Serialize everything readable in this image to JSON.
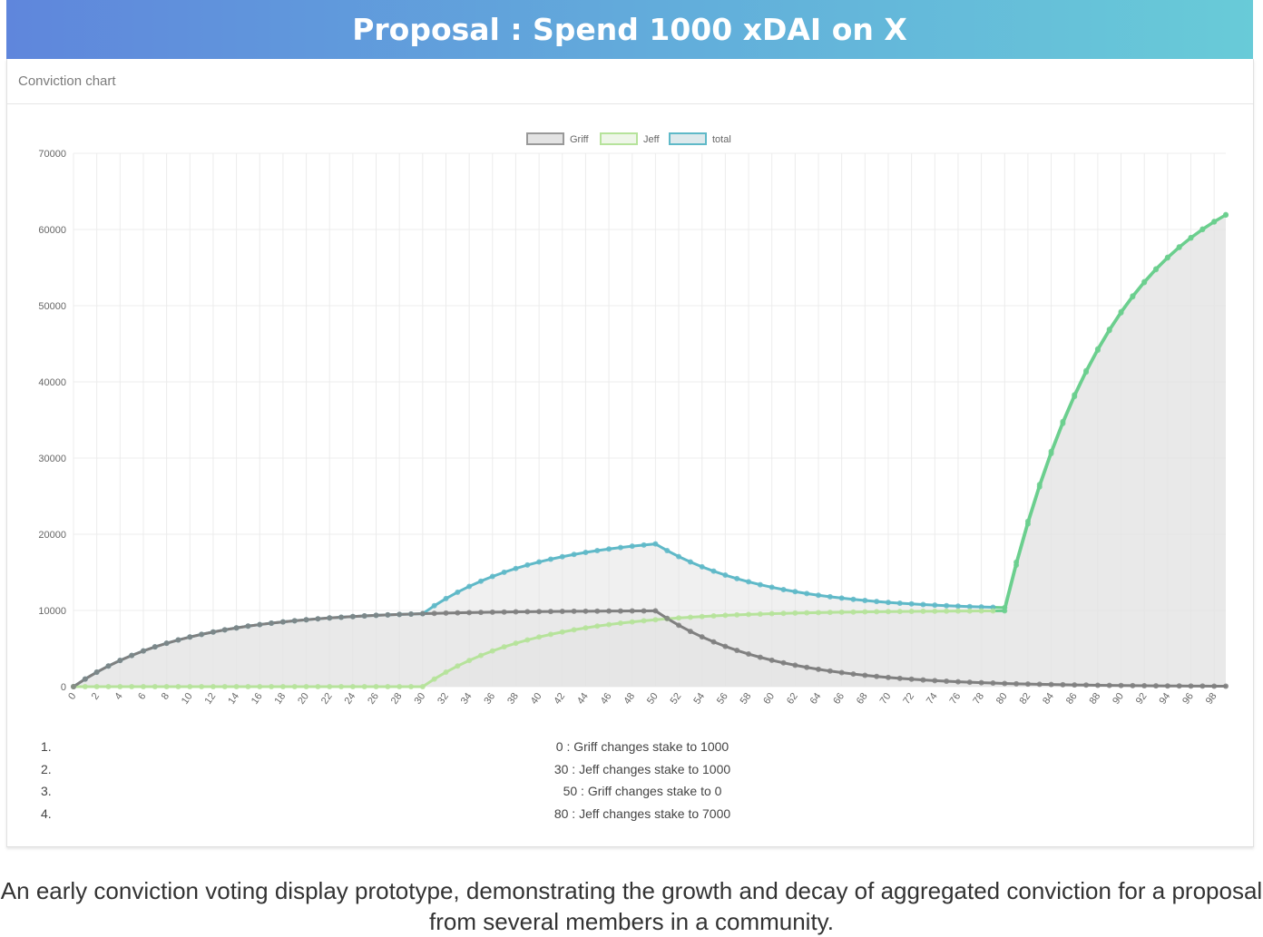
{
  "banner": {
    "title": "Proposal : Spend 1000 xDAI on X"
  },
  "card": {
    "title": "Conviction chart"
  },
  "colors": {
    "griff": "#808080",
    "jeff": "#b6e39b",
    "total": "#5fb9c8",
    "total_late": "#6bcf8e",
    "fill": "#e3e3e3"
  },
  "chart_data": {
    "type": "line",
    "title": "",
    "xlabel": "",
    "ylabel": "",
    "ylim": [
      0,
      70000
    ],
    "yticks": [
      0,
      10000,
      20000,
      30000,
      40000,
      50000,
      60000,
      70000
    ],
    "legend_position": "top-center",
    "x": [
      0,
      1,
      2,
      3,
      4,
      5,
      6,
      7,
      8,
      9,
      10,
      11,
      12,
      13,
      14,
      15,
      16,
      17,
      18,
      19,
      20,
      21,
      22,
      23,
      24,
      25,
      26,
      27,
      28,
      29,
      30,
      31,
      32,
      33,
      34,
      35,
      36,
      37,
      38,
      39,
      40,
      41,
      42,
      43,
      44,
      45,
      46,
      47,
      48,
      49,
      50,
      51,
      52,
      53,
      54,
      55,
      56,
      57,
      58,
      59,
      60,
      61,
      62,
      63,
      64,
      65,
      66,
      67,
      68,
      69,
      70,
      71,
      72,
      73,
      74,
      75,
      76,
      77,
      78,
      79,
      80,
      81,
      82,
      83,
      84,
      85,
      86,
      87,
      88,
      89,
      90,
      91,
      92,
      93,
      94,
      95,
      96,
      97,
      98,
      99
    ],
    "xtick_labels": [
      "0",
      "2",
      "4",
      "6",
      "8",
      "10",
      "12",
      "14",
      "16",
      "18",
      "20",
      "22",
      "24",
      "26",
      "28",
      "30",
      "32",
      "34",
      "36",
      "38",
      "40",
      "42",
      "44",
      "46",
      "48",
      "50",
      "52",
      "54",
      "56",
      "58",
      "60",
      "62",
      "64",
      "66",
      "68",
      "70",
      "72",
      "74",
      "76",
      "78",
      "80",
      "82",
      "84",
      "86",
      "88",
      "90",
      "92",
      "94",
      "96",
      "98"
    ],
    "series": [
      {
        "name": "Griff",
        "values": [
          0,
          1000,
          1900,
          2710,
          3439,
          4095,
          4686,
          5217,
          5695,
          6126,
          6513,
          6862,
          7176,
          7458,
          7712,
          7941,
          8147,
          8332,
          8499,
          8649,
          8784,
          8906,
          9015,
          9114,
          9202,
          9282,
          9354,
          9419,
          9477,
          9529,
          9576,
          9618,
          9657,
          9691,
          9722,
          9750,
          9775,
          9797,
          9818,
          9836,
          9852,
          9867,
          9880,
          9892,
          9903,
          9913,
          9921,
          9929,
          9936,
          9943,
          9948,
          8953,
          8058,
          7253,
          6527,
          5875,
          5287,
          4758,
          4283,
          3854,
          3469,
          3122,
          2810,
          2529,
          2276,
          2048,
          1844,
          1659,
          1493,
          1344,
          1210,
          1089,
          980,
          882,
          794,
          714,
          643,
          578,
          521,
          469,
          422,
          379,
          342,
          307,
          277,
          249,
          224,
          202,
          182,
          163,
          147,
          132,
          119,
          107,
          96,
          87,
          78,
          70,
          63,
          57
        ]
      },
      {
        "name": "Jeff",
        "values": [
          0,
          0,
          0,
          0,
          0,
          0,
          0,
          0,
          0,
          0,
          0,
          0,
          0,
          0,
          0,
          0,
          0,
          0,
          0,
          0,
          0,
          0,
          0,
          0,
          0,
          0,
          0,
          0,
          0,
          0,
          0,
          1000,
          1900,
          2710,
          3439,
          4095,
          4686,
          5217,
          5695,
          6126,
          6513,
          6862,
          7176,
          7458,
          7712,
          7941,
          8147,
          8332,
          8499,
          8649,
          8784,
          8906,
          9015,
          9114,
          9202,
          9282,
          9354,
          9419,
          9477,
          9529,
          9576,
          9618,
          9657,
          9691,
          9722,
          9750,
          9775,
          9797,
          9818,
          9836,
          9852,
          9867,
          9880,
          9892,
          9903,
          9913,
          9921,
          9929,
          9936,
          9943,
          9948,
          15954,
          21358,
          26222,
          30600,
          34540,
          38086,
          41277,
          44150,
          46735,
          49061,
          51155,
          53040,
          54736,
          56262,
          57636,
          58872,
          59985,
          60987,
          61888
        ]
      },
      {
        "name": "total",
        "values": [
          0,
          1000,
          1900,
          2710,
          3439,
          4095,
          4686,
          5217,
          5695,
          6126,
          6513,
          6862,
          7176,
          7458,
          7712,
          7941,
          8147,
          8332,
          8499,
          8649,
          8784,
          8906,
          9015,
          9114,
          9202,
          9282,
          9354,
          9419,
          9477,
          9529,
          9576,
          10618,
          11557,
          12401,
          13161,
          13845,
          14461,
          15014,
          15513,
          15962,
          16365,
          16729,
          17056,
          17350,
          17615,
          17854,
          18068,
          18261,
          18435,
          18592,
          18732,
          17859,
          17073,
          16367,
          15729,
          15157,
          14641,
          14177,
          13760,
          13383,
          13045,
          12740,
          12467,
          12220,
          11998,
          11798,
          11619,
          11456,
          11311,
          11180,
          11062,
          10956,
          10860,
          10774,
          10697,
          10627,
          10564,
          10507,
          10457,
          10412,
          10370,
          16333,
          21700,
          26529,
          30877,
          34789,
          38310,
          41479,
          44332,
          46898,
          49208,
          51287,
          53159,
          54843,
          56358,
          57723,
          58950,
          60055,
          61050,
          61945
        ]
      }
    ]
  },
  "events": [
    {
      "num": "1.",
      "text": "0 : Griff changes stake to 1000"
    },
    {
      "num": "2.",
      "text": "30 : Jeff changes stake to 1000"
    },
    {
      "num": "3.",
      "text": "50 : Griff changes stake to 0"
    },
    {
      "num": "4.",
      "text": "80 : Jeff changes stake to 7000"
    }
  ],
  "caption": "An early conviction voting display prototype, demonstrating the growth and decay of aggregated conviction for a proposal from several members in a community."
}
